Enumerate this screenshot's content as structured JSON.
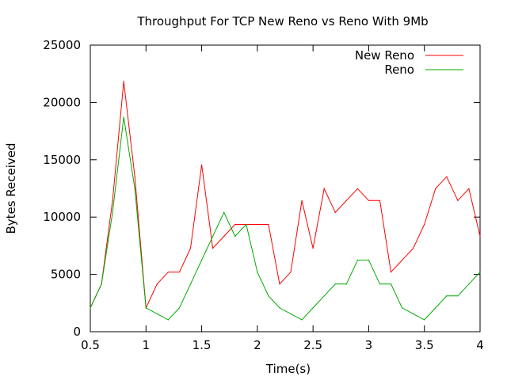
{
  "chart_data": {
    "type": "line",
    "title": "Throughput For TCP New Reno vs Reno With 9Mb",
    "xlabel": "Time(s)",
    "ylabel": "Bytes Received",
    "xlim": [
      0.5,
      4
    ],
    "ylim": [
      0,
      25000
    ],
    "x_ticks": [
      "0.5",
      "1",
      "1.5",
      "2",
      "2.5",
      "3",
      "3.5",
      "4"
    ],
    "y_ticks": [
      "0",
      "5000",
      "10000",
      "15000",
      "20000",
      "25000"
    ],
    "grid": false,
    "legend_position": "top-right",
    "x": [
      0.5,
      0.6,
      0.7,
      0.8,
      0.9,
      1.0,
      1.1,
      1.2,
      1.3,
      1.4,
      1.5,
      1.6,
      1.7,
      1.8,
      1.9,
      2.0,
      2.1,
      2.2,
      2.3,
      2.4,
      2.5,
      2.6,
      2.7,
      2.8,
      2.9,
      3.0,
      3.1,
      3.2,
      3.3,
      3.4,
      3.5,
      3.6,
      3.7,
      3.8,
      3.9,
      4.0
    ],
    "series": [
      {
        "name": "New Reno",
        "color": "#ff0000",
        "values": [
          2080,
          4160,
          11440,
          21840,
          13520,
          2080,
          4160,
          5200,
          5200,
          7280,
          14560,
          7280,
          8320,
          9360,
          9360,
          9360,
          9360,
          4160,
          5200,
          11440,
          7280,
          12480,
          10400,
          11440,
          12480,
          11440,
          11440,
          5200,
          6240,
          7280,
          9360,
          12480,
          13520,
          11440,
          12480,
          8320
        ]
      },
      {
        "name": "Reno",
        "color": "#00aa00",
        "values": [
          2080,
          4160,
          10400,
          18720,
          12480,
          2080,
          1560,
          1040,
          2080,
          4160,
          6240,
          8320,
          10400,
          8320,
          9360,
          5200,
          3120,
          2080,
          1560,
          1040,
          2080,
          3120,
          4160,
          4160,
          6240,
          6240,
          4160,
          4160,
          2080,
          1560,
          1040,
          2080,
          3120,
          3120,
          4160,
          5200
        ]
      }
    ]
  }
}
